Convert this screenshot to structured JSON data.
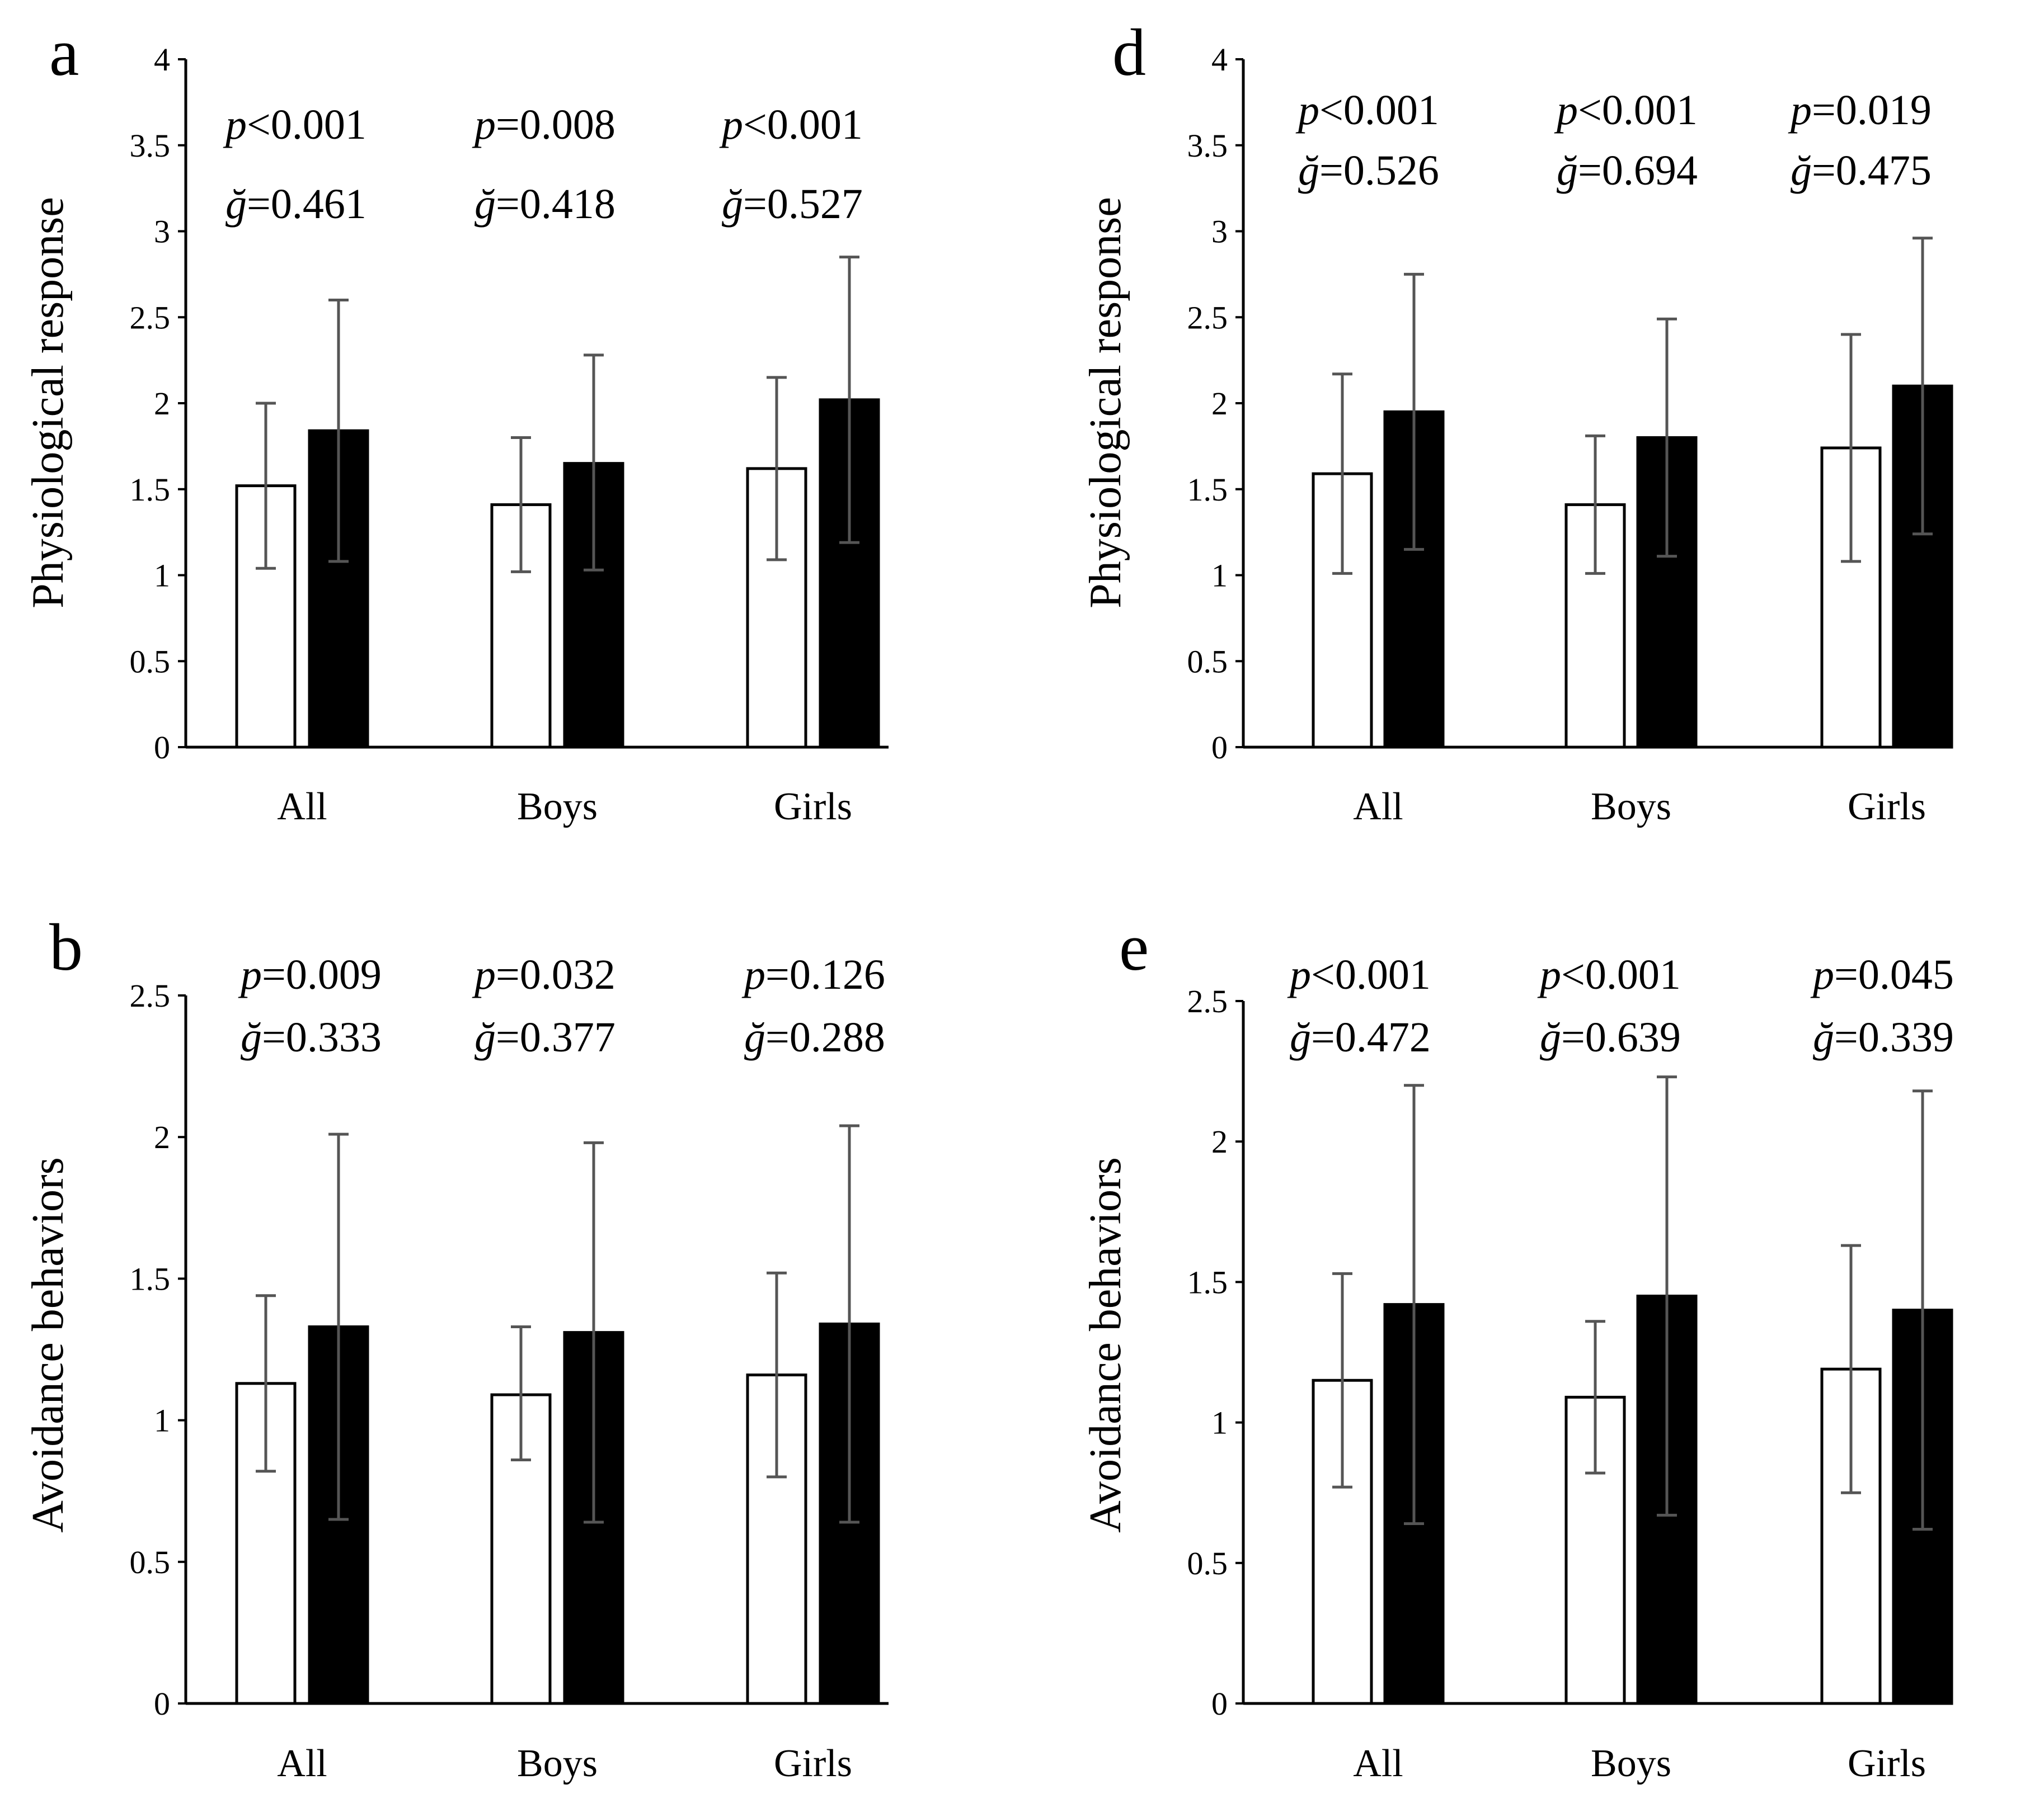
{
  "chart_data": [
    {
      "panel": "a",
      "type": "bar",
      "ylabel": "Physiological response",
      "ylim": [
        0,
        4
      ],
      "yticks": [
        "0",
        "0.5",
        "1",
        "1.5",
        "2",
        "2.5",
        "3",
        "3.5",
        "4"
      ],
      "categories": [
        "All",
        "Boys",
        "Girls"
      ],
      "series": [
        {
          "name": "white",
          "values": [
            1.52,
            1.41,
            1.62
          ],
          "err_low": [
            1.04,
            1.02,
            1.09
          ],
          "err_high": [
            2.0,
            1.8,
            2.15
          ]
        },
        {
          "name": "black",
          "values": [
            1.84,
            1.65,
            2.02
          ],
          "err_low": [
            1.08,
            1.03,
            1.19
          ],
          "err_high": [
            2.6,
            2.28,
            2.85
          ]
        }
      ],
      "stats": [
        {
          "p_sym": "p",
          "p_val": "<0.001",
          "g_sym": "ğ",
          "g_val": "=0.461"
        },
        {
          "p_sym": "p",
          "p_val": "=0.008",
          "g_sym": "ğ",
          "g_val": "=0.418"
        },
        {
          "p_sym": "p",
          "p_val": "<0.001",
          "g_sym": "ğ",
          "g_val": "=0.527"
        }
      ]
    },
    {
      "panel": "d",
      "type": "bar",
      "ylabel": "Physiological response",
      "ylim": [
        0,
        4
      ],
      "yticks": [
        "0",
        "0.5",
        "1",
        "1.5",
        "2",
        "2.5",
        "3",
        "3.5",
        "4"
      ],
      "categories": [
        "All",
        "Boys",
        "Girls"
      ],
      "series": [
        {
          "name": "white",
          "values": [
            1.59,
            1.41,
            1.74
          ],
          "err_low": [
            1.01,
            1.01,
            1.08
          ],
          "err_high": [
            2.17,
            1.81,
            2.4
          ]
        },
        {
          "name": "black",
          "values": [
            1.95,
            1.8,
            2.1
          ],
          "err_low": [
            1.15,
            1.11,
            1.24
          ],
          "err_high": [
            2.75,
            2.49,
            2.96
          ]
        }
      ],
      "stats": [
        {
          "p_sym": "p",
          "p_val": "<0.001",
          "g_sym": "ğ",
          "g_val": "=0.526"
        },
        {
          "p_sym": "p",
          "p_val": "<0.001",
          "g_sym": "ğ",
          "g_val": "=0.694"
        },
        {
          "p_sym": "p",
          "p_val": "=0.019",
          "g_sym": "ğ",
          "g_val": "=0.475"
        }
      ]
    },
    {
      "panel": "b",
      "type": "bar",
      "ylabel": "Avoidance behaviors",
      "ylim": [
        0,
        2.5
      ],
      "yticks": [
        "0",
        "0.5",
        "1",
        "1.5",
        "2",
        "2.5"
      ],
      "categories": [
        "All",
        "Boys",
        "Girls"
      ],
      "series": [
        {
          "name": "white",
          "values": [
            1.13,
            1.09,
            1.16
          ],
          "err_low": [
            0.82,
            0.86,
            0.8
          ],
          "err_high": [
            1.44,
            1.33,
            1.52
          ]
        },
        {
          "name": "black",
          "values": [
            1.33,
            1.31,
            1.34
          ],
          "err_low": [
            0.65,
            0.64,
            0.64
          ],
          "err_high": [
            2.01,
            1.98,
            2.04
          ]
        }
      ],
      "stats": [
        {
          "p_sym": "p",
          "p_val": "=0.009",
          "g_sym": "ğ",
          "g_val": "=0.333"
        },
        {
          "p_sym": "p",
          "p_val": "=0.032",
          "g_sym": "ğ",
          "g_val": "=0.377"
        },
        {
          "p_sym": "p",
          "p_val": "=0.126",
          "g_sym": "ğ",
          "g_val": "=0.288"
        }
      ]
    },
    {
      "panel": "e",
      "type": "bar",
      "ylabel": "Avoidance behaviors",
      "ylim": [
        0,
        2.5
      ],
      "yticks": [
        "0",
        "0.5",
        "1",
        "1.5",
        "2",
        "2.5"
      ],
      "categories": [
        "All",
        "Boys",
        "Girls"
      ],
      "series": [
        {
          "name": "white",
          "values": [
            1.15,
            1.09,
            1.19
          ],
          "err_low": [
            0.77,
            0.82,
            0.75
          ],
          "err_high": [
            1.53,
            1.36,
            1.63
          ]
        },
        {
          "name": "black",
          "values": [
            1.42,
            1.45,
            1.4
          ],
          "err_low": [
            0.64,
            0.67,
            0.62
          ],
          "err_high": [
            2.2,
            2.23,
            2.18
          ]
        }
      ],
      "stats": [
        {
          "p_sym": "p",
          "p_val": "<0.001",
          "g_sym": "ğ",
          "g_val": "=0.472"
        },
        {
          "p_sym": "p",
          "p_val": "<0.001",
          "g_sym": "ğ",
          "g_val": "=0.639"
        },
        {
          "p_sym": "p",
          "p_val": "=0.045",
          "g_sym": "ğ",
          "g_val": "=0.339"
        }
      ]
    }
  ]
}
